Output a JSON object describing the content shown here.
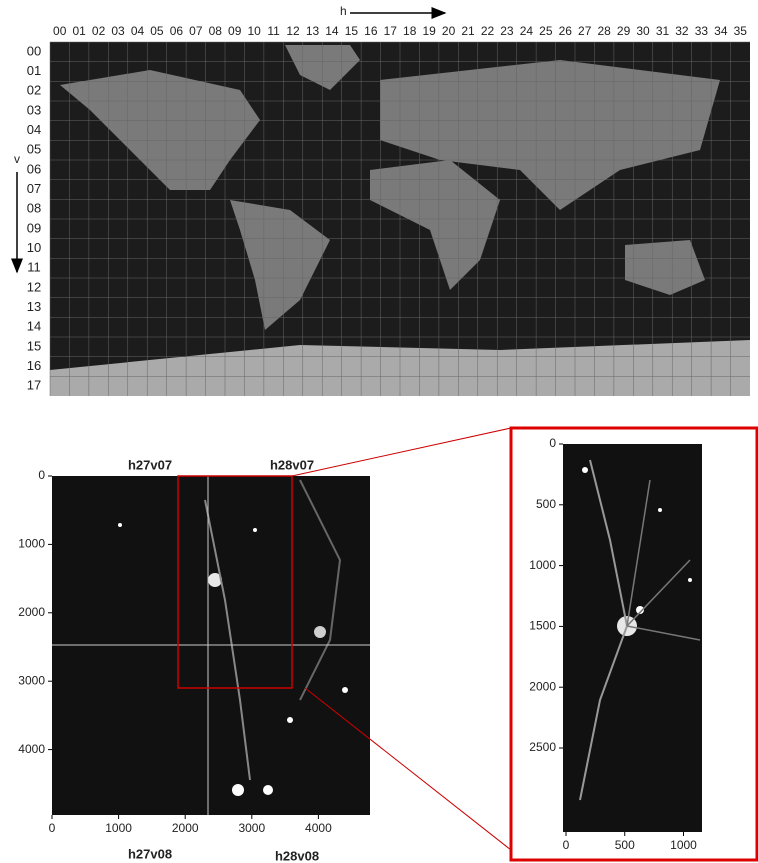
{
  "map": {
    "h_label": "h",
    "v_label": "v",
    "columns": [
      "00",
      "01",
      "02",
      "03",
      "04",
      "05",
      "06",
      "07",
      "08",
      "09",
      "10",
      "11",
      "12",
      "13",
      "14",
      "15",
      "16",
      "17",
      "18",
      "19",
      "20",
      "21",
      "22",
      "23",
      "24",
      "25",
      "26",
      "27",
      "28",
      "29",
      "30",
      "31",
      "32",
      "33",
      "34",
      "35"
    ],
    "rows": [
      "00",
      "01",
      "02",
      "03",
      "04",
      "05",
      "06",
      "07",
      "08",
      "09",
      "10",
      "11",
      "12",
      "13",
      "14",
      "15",
      "16",
      "17"
    ]
  },
  "tile_view": {
    "tiles": [
      "h27v07",
      "h28v07",
      "h27v08",
      "h28v08"
    ],
    "xticks": [
      0,
      1000,
      2000,
      3000,
      4000
    ],
    "yticks": [
      0,
      1000,
      2000,
      3000,
      4000
    ]
  },
  "zoom_view": {
    "xticks": [
      0,
      500,
      1000
    ],
    "yticks": [
      0,
      500,
      1000,
      1500,
      2000,
      2500
    ]
  }
}
